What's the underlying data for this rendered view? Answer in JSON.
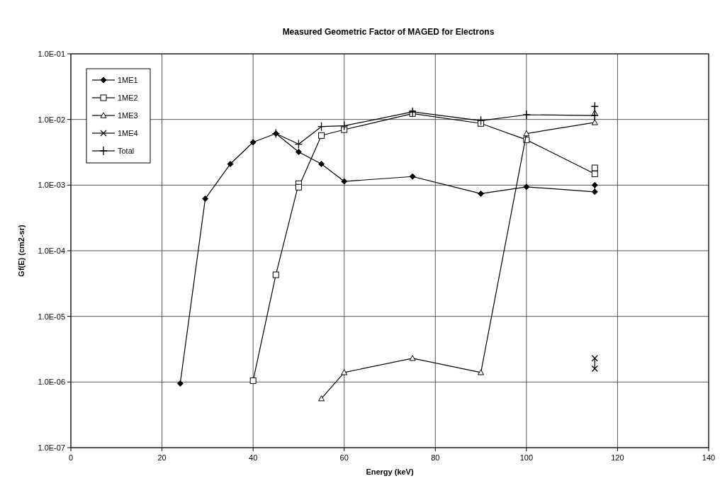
{
  "chart_data": {
    "type": "line",
    "title": "Measured Geometric Factor of MAGED for Electrons",
    "xlabel": "Energy (keV)",
    "ylabel": "Gf(E) (cm2-sr)",
    "log": true,
    "grid": true,
    "legend": "top left",
    "xlim": [
      0,
      140
    ],
    "xticks": [
      0,
      20,
      40,
      60,
      80,
      100,
      120,
      140
    ],
    "ylim": [
      1e-07,
      0.1
    ],
    "yticks": [
      {
        "value": 1e-07,
        "label": "1.0E-07"
      },
      {
        "value": 1e-06,
        "label": "1.0E-06"
      },
      {
        "value": 1e-05,
        "label": "1.0E-05"
      },
      {
        "value": 0.0001,
        "label": "1.0E-04"
      },
      {
        "value": 0.001,
        "label": "1.0E-03"
      },
      {
        "value": 0.01,
        "label": "1.0E-02"
      },
      {
        "value": 0.1,
        "label": "1.0E-01"
      }
    ],
    "series": [
      {
        "name": "1ME1",
        "color": "#000000",
        "marker": "diamond",
        "x": [
          24,
          29.5,
          35,
          40,
          45,
          50,
          55,
          60,
          75,
          90,
          100,
          115,
          115
        ],
        "values": [
          9.5e-07,
          0.00062,
          0.0021,
          0.0045,
          0.0061,
          0.0032,
          0.0021,
          0.00114,
          0.00135,
          0.00074,
          0.00094,
          0.00079,
          0.001
        ]
      },
      {
        "name": "1ME2",
        "color": "#000000",
        "marker": "square",
        "x": [
          40,
          45,
          50,
          50,
          55,
          60,
          75,
          90,
          100,
          115,
          115
        ],
        "values": [
          1.05e-06,
          4.3e-05,
          0.00105,
          0.00093,
          0.0057,
          0.007,
          0.0123,
          0.0087,
          0.0049,
          0.00148,
          0.00183
        ]
      },
      {
        "name": "1ME3",
        "color": "#000000",
        "marker": "triangle",
        "x": [
          55,
          60,
          75,
          90,
          100,
          115,
          115
        ],
        "values": [
          5.6e-07,
          1.4e-06,
          2.3e-06,
          1.4e-06,
          0.0061,
          0.009,
          0.0126
        ]
      },
      {
        "name": "1ME4",
        "color": "#000000",
        "marker": "cross",
        "x": [
          115,
          115
        ],
        "values": [
          2.3e-06,
          1.6e-06
        ]
      },
      {
        "name": "Total",
        "color": "#000000",
        "marker": "plus",
        "x": [
          45,
          50,
          55,
          60,
          75,
          90,
          100,
          115,
          115
        ],
        "values": [
          0.0061,
          0.0042,
          0.0078,
          0.008,
          0.0131,
          0.0096,
          0.0118,
          0.0115,
          0.0158
        ]
      }
    ]
  }
}
